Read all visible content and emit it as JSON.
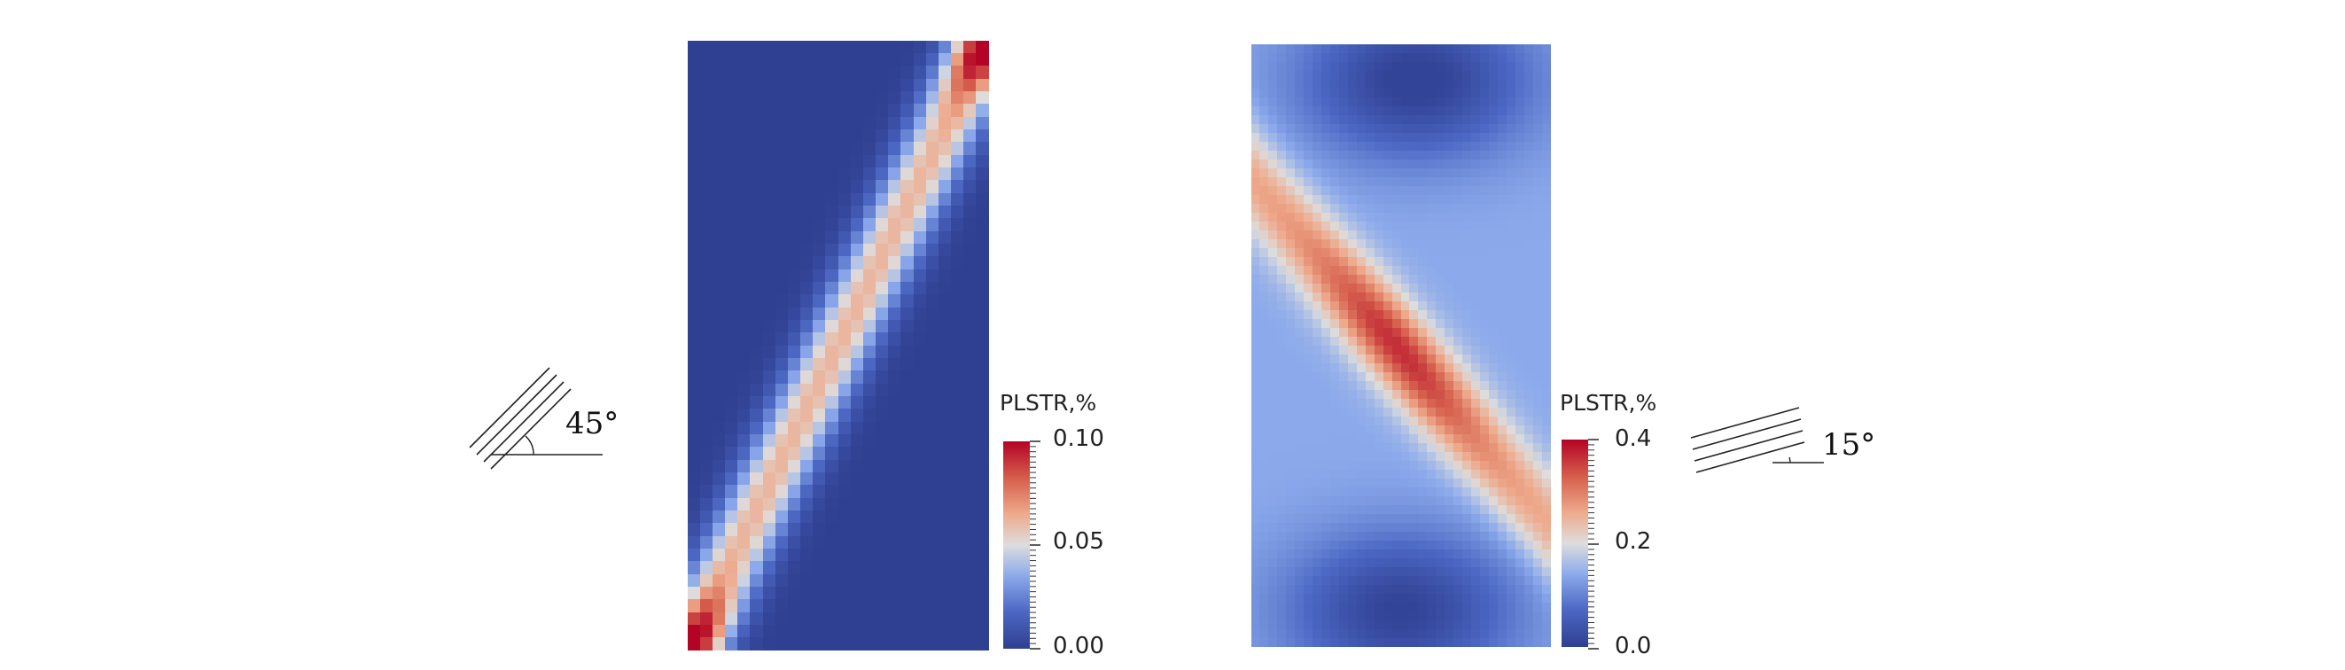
{
  "left_panel": {
    "orientation_label": "45°",
    "colorbar": {
      "title": "PLSTR,%",
      "ticks": [
        "0.10",
        "0.05",
        "0.00"
      ],
      "range": [
        0.0,
        0.1
      ],
      "colormap": "cool-to-warm"
    }
  },
  "right_panel": {
    "orientation_label": "15°",
    "colorbar": {
      "title": "PLSTR,%",
      "ticks": [
        "0.4",
        "0.2",
        "0.0"
      ],
      "range": [
        0.0,
        0.4
      ],
      "colormap": "cool-to-warm"
    }
  },
  "colors": {
    "low": "#3b4cc0",
    "mid": "#dddddd",
    "high": "#b40426",
    "field_background": "#2f3f91"
  }
}
